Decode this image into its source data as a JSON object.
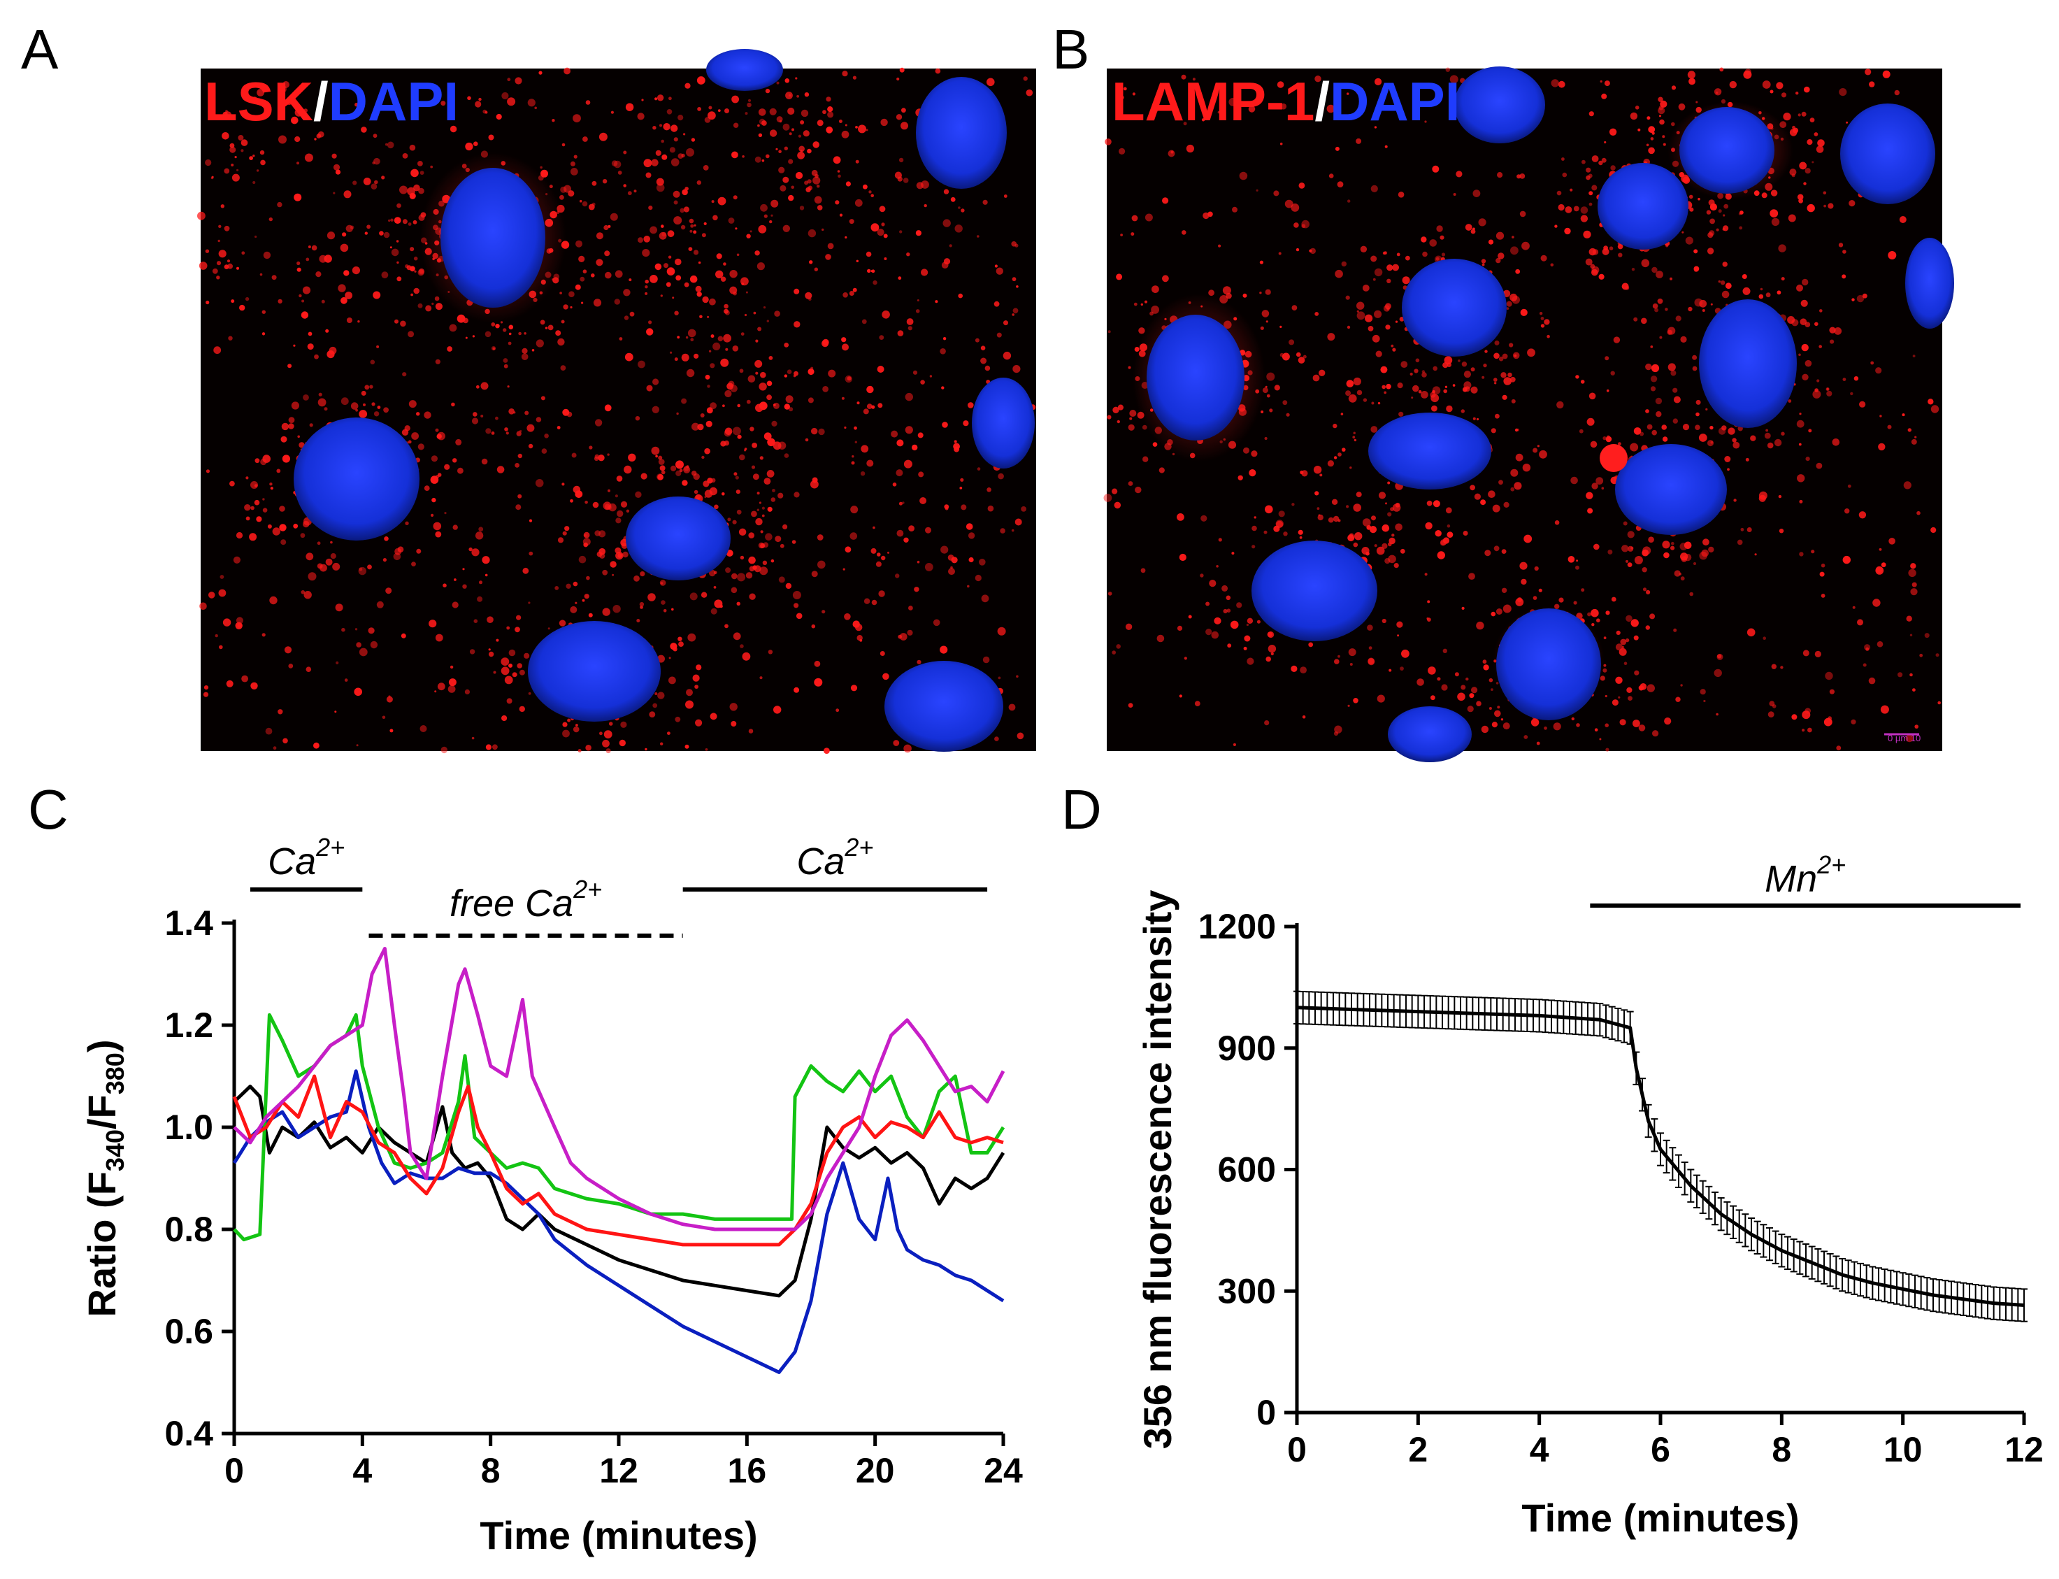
{
  "panels": {
    "A": {
      "label": "A",
      "title_parts": [
        {
          "text": "LSK",
          "color": "#ff1a1a"
        },
        {
          "text": "/",
          "color": "#ffffff"
        },
        {
          "text": "DAPI",
          "color": "#1f3cff"
        }
      ]
    },
    "B": {
      "label": "B",
      "title_parts": [
        {
          "text": "LAMP-1",
          "color": "#ff1a1a"
        },
        {
          "text": "/",
          "color": "#ffffff"
        },
        {
          "text": "DAPI",
          "color": "#1f3cff"
        }
      ],
      "scale_bar": "0   µm  10"
    },
    "C": {
      "label": "C"
    },
    "D": {
      "label": "D"
    }
  },
  "chart_data": [
    {
      "id": "C",
      "type": "line",
      "xlabel": "Time (minutes)",
      "ylabel": "Ratio (F340/F380)",
      "ylabel_parts": {
        "pre": "Ratio (F",
        "sub1": "340",
        "mid": "/F",
        "sub2": "380",
        "post": ")"
      },
      "xlim": [
        0,
        24
      ],
      "ylim": [
        0.4,
        1.4
      ],
      "xticks": [
        0,
        4,
        8,
        12,
        16,
        20,
        24
      ],
      "yticks": [
        "0.4",
        "0.6",
        "0.8",
        "1.0",
        "1.2",
        "1.4"
      ],
      "annotations": [
        {
          "text": "Ca",
          "sup": "2+",
          "x_range": [
            0.5,
            4
          ],
          "style": "solid"
        },
        {
          "text": "free Ca",
          "sup": "2+",
          "x_range": [
            4.2,
            14
          ],
          "style": "dashed"
        },
        {
          "text": "Ca",
          "sup": "2+",
          "x_range": [
            14,
            23.5
          ],
          "style": "solid"
        }
      ],
      "series": [
        {
          "name": "black",
          "color": "#000000",
          "points": [
            [
              0,
              1.05
            ],
            [
              0.5,
              1.08
            ],
            [
              0.8,
              1.06
            ],
            [
              1.1,
              0.95
            ],
            [
              1.5,
              1.0
            ],
            [
              2,
              0.98
            ],
            [
              2.5,
              1.01
            ],
            [
              3,
              0.96
            ],
            [
              3.5,
              0.98
            ],
            [
              4,
              0.95
            ],
            [
              4.5,
              1.0
            ],
            [
              5,
              0.97
            ],
            [
              5.5,
              0.95
            ],
            [
              6,
              0.93
            ],
            [
              6.5,
              1.04
            ],
            [
              6.8,
              0.95
            ],
            [
              7.2,
              0.92
            ],
            [
              7.6,
              0.93
            ],
            [
              8,
              0.9
            ],
            [
              8.5,
              0.82
            ],
            [
              9,
              0.8
            ],
            [
              9.5,
              0.83
            ],
            [
              10,
              0.8
            ],
            [
              11,
              0.77
            ],
            [
              12,
              0.74
            ],
            [
              13,
              0.72
            ],
            [
              14,
              0.7
            ],
            [
              15,
              0.69
            ],
            [
              16,
              0.68
            ],
            [
              17,
              0.67
            ],
            [
              17.5,
              0.7
            ],
            [
              18,
              0.82
            ],
            [
              18.5,
              1.0
            ],
            [
              19,
              0.96
            ],
            [
              19.5,
              0.94
            ],
            [
              20,
              0.96
            ],
            [
              20.5,
              0.93
            ],
            [
              21,
              0.95
            ],
            [
              21.5,
              0.92
            ],
            [
              22,
              0.85
            ],
            [
              22.5,
              0.9
            ],
            [
              23,
              0.88
            ],
            [
              23.5,
              0.9
            ],
            [
              24,
              0.95
            ]
          ]
        },
        {
          "name": "blue",
          "color": "#0a1fbf",
          "points": [
            [
              0,
              0.93
            ],
            [
              0.5,
              0.98
            ],
            [
              1,
              1.01
            ],
            [
              1.5,
              1.03
            ],
            [
              2,
              0.98
            ],
            [
              2.5,
              1.0
            ],
            [
              3,
              1.02
            ],
            [
              3.5,
              1.03
            ],
            [
              3.8,
              1.11
            ],
            [
              4.2,
              1.0
            ],
            [
              4.6,
              0.93
            ],
            [
              5,
              0.89
            ],
            [
              5.5,
              0.91
            ],
            [
              6,
              0.9
            ],
            [
              6.5,
              0.9
            ],
            [
              7,
              0.92
            ],
            [
              7.5,
              0.91
            ],
            [
              8,
              0.91
            ],
            [
              8.5,
              0.89
            ],
            [
              9,
              0.86
            ],
            [
              9.5,
              0.83
            ],
            [
              10,
              0.78
            ],
            [
              11,
              0.73
            ],
            [
              12,
              0.69
            ],
            [
              13,
              0.65
            ],
            [
              14,
              0.61
            ],
            [
              15,
              0.58
            ],
            [
              16,
              0.55
            ],
            [
              17,
              0.52
            ],
            [
              17.5,
              0.56
            ],
            [
              18,
              0.66
            ],
            [
              18.5,
              0.83
            ],
            [
              19,
              0.93
            ],
            [
              19.5,
              0.82
            ],
            [
              20,
              0.78
            ],
            [
              20.4,
              0.9
            ],
            [
              20.7,
              0.8
            ],
            [
              21,
              0.76
            ],
            [
              21.5,
              0.74
            ],
            [
              22,
              0.73
            ],
            [
              22.5,
              0.71
            ],
            [
              23,
              0.7
            ],
            [
              23.5,
              0.68
            ],
            [
              24,
              0.66
            ]
          ]
        },
        {
          "name": "green",
          "color": "#13c413",
          "points": [
            [
              0,
              0.8
            ],
            [
              0.3,
              0.78
            ],
            [
              0.8,
              0.79
            ],
            [
              1.1,
              1.22
            ],
            [
              1.5,
              1.17
            ],
            [
              2,
              1.1
            ],
            [
              2.5,
              1.12
            ],
            [
              3,
              1.16
            ],
            [
              3.5,
              1.18
            ],
            [
              3.8,
              1.22
            ],
            [
              4,
              1.12
            ],
            [
              4.5,
              1.0
            ],
            [
              5,
              0.93
            ],
            [
              5.5,
              0.92
            ],
            [
              6,
              0.93
            ],
            [
              6.5,
              0.95
            ],
            [
              7,
              1.05
            ],
            [
              7.2,
              1.14
            ],
            [
              7.5,
              0.98
            ],
            [
              8,
              0.95
            ],
            [
              8.5,
              0.92
            ],
            [
              9,
              0.93
            ],
            [
              9.5,
              0.92
            ],
            [
              10,
              0.88
            ],
            [
              11,
              0.86
            ],
            [
              12,
              0.85
            ],
            [
              13,
              0.83
            ],
            [
              14,
              0.83
            ],
            [
              15,
              0.82
            ],
            [
              16,
              0.82
            ],
            [
              17,
              0.82
            ],
            [
              17.4,
              0.82
            ],
            [
              17.5,
              1.06
            ],
            [
              18,
              1.12
            ],
            [
              18.5,
              1.09
            ],
            [
              19,
              1.07
            ],
            [
              19.5,
              1.11
            ],
            [
              20,
              1.07
            ],
            [
              20.5,
              1.1
            ],
            [
              21,
              1.02
            ],
            [
              21.5,
              0.98
            ],
            [
              22,
              1.07
            ],
            [
              22.5,
              1.1
            ],
            [
              23,
              0.95
            ],
            [
              23.5,
              0.95
            ],
            [
              24,
              1.0
            ]
          ]
        },
        {
          "name": "red",
          "color": "#ff1414",
          "points": [
            [
              0,
              1.06
            ],
            [
              0.5,
              0.98
            ],
            [
              1,
              1.0
            ],
            [
              1.5,
              1.05
            ],
            [
              2,
              1.02
            ],
            [
              2.5,
              1.1
            ],
            [
              3,
              0.98
            ],
            [
              3.5,
              1.05
            ],
            [
              4,
              1.03
            ],
            [
              4.5,
              0.97
            ],
            [
              5,
              0.95
            ],
            [
              5.5,
              0.9
            ],
            [
              6,
              0.87
            ],
            [
              6.5,
              0.92
            ],
            [
              7,
              1.03
            ],
            [
              7.3,
              1.08
            ],
            [
              7.6,
              1.0
            ],
            [
              8,
              0.95
            ],
            [
              8.5,
              0.88
            ],
            [
              9,
              0.85
            ],
            [
              9.5,
              0.87
            ],
            [
              10,
              0.83
            ],
            [
              11,
              0.8
            ],
            [
              12,
              0.79
            ],
            [
              13,
              0.78
            ],
            [
              14,
              0.77
            ],
            [
              15,
              0.77
            ],
            [
              16,
              0.77
            ],
            [
              17,
              0.77
            ],
            [
              17.5,
              0.8
            ],
            [
              18,
              0.85
            ],
            [
              18.5,
              0.95
            ],
            [
              19,
              1.0
            ],
            [
              19.5,
              1.02
            ],
            [
              20,
              0.98
            ],
            [
              20.5,
              1.01
            ],
            [
              21,
              1.0
            ],
            [
              21.5,
              0.98
            ],
            [
              22,
              1.03
            ],
            [
              22.5,
              0.98
            ],
            [
              23,
              0.97
            ],
            [
              23.5,
              0.98
            ],
            [
              24,
              0.97
            ]
          ]
        },
        {
          "name": "magenta",
          "color": "#c71ec7",
          "points": [
            [
              0,
              1.0
            ],
            [
              0.5,
              0.97
            ],
            [
              1,
              1.02
            ],
            [
              1.5,
              1.05
            ],
            [
              2,
              1.08
            ],
            [
              2.5,
              1.12
            ],
            [
              3,
              1.16
            ],
            [
              3.5,
              1.18
            ],
            [
              4,
              1.2
            ],
            [
              4.3,
              1.3
            ],
            [
              4.7,
              1.35
            ],
            [
              5,
              1.2
            ],
            [
              5.3,
              1.06
            ],
            [
              5.5,
              0.95
            ],
            [
              6,
              0.9
            ],
            [
              6.5,
              1.1
            ],
            [
              7,
              1.28
            ],
            [
              7.2,
              1.31
            ],
            [
              7.6,
              1.22
            ],
            [
              8,
              1.12
            ],
            [
              8.5,
              1.1
            ],
            [
              9,
              1.25
            ],
            [
              9.3,
              1.1
            ],
            [
              10,
              1.0
            ],
            [
              10.5,
              0.93
            ],
            [
              11,
              0.9
            ],
            [
              12,
              0.86
            ],
            [
              13,
              0.83
            ],
            [
              14,
              0.81
            ],
            [
              15,
              0.8
            ],
            [
              16,
              0.8
            ],
            [
              17,
              0.8
            ],
            [
              17.5,
              0.8
            ],
            [
              18,
              0.83
            ],
            [
              18.5,
              0.9
            ],
            [
              19,
              0.95
            ],
            [
              19.5,
              1.0
            ],
            [
              20,
              1.1
            ],
            [
              20.5,
              1.18
            ],
            [
              21,
              1.21
            ],
            [
              21.5,
              1.17
            ],
            [
              22,
              1.12
            ],
            [
              22.5,
              1.07
            ],
            [
              23,
              1.08
            ],
            [
              23.5,
              1.05
            ],
            [
              24,
              1.11
            ]
          ]
        }
      ]
    },
    {
      "id": "D",
      "type": "line",
      "xlabel": "Time (minutes)",
      "ylabel": "356 nm fluorescence intensity",
      "xlim": [
        0,
        12
      ],
      "ylim": [
        0,
        1200
      ],
      "xticks": [
        0,
        2,
        4,
        6,
        8,
        10,
        12
      ],
      "yticks": [
        0,
        300,
        600,
        900,
        1200
      ],
      "annotations": [
        {
          "text": "Mn",
          "sup": "2+",
          "x_range": [
            5.3,
            12
          ],
          "style": "solid"
        }
      ],
      "error_bar": 40,
      "series": [
        {
          "name": "mean",
          "color": "#000000",
          "points": [
            [
              0,
              1000
            ],
            [
              1,
              995
            ],
            [
              2,
              990
            ],
            [
              3,
              985
            ],
            [
              4,
              980
            ],
            [
              5,
              970
            ],
            [
              5.5,
              950
            ],
            [
              5.6,
              850
            ],
            [
              5.8,
              720
            ],
            [
              6,
              650
            ],
            [
              6.5,
              560
            ],
            [
              7,
              490
            ],
            [
              7.5,
              440
            ],
            [
              8,
              400
            ],
            [
              8.5,
              370
            ],
            [
              9,
              340
            ],
            [
              9.5,
              320
            ],
            [
              10,
              305
            ],
            [
              10.5,
              290
            ],
            [
              11,
              280
            ],
            [
              11.5,
              270
            ],
            [
              12,
              265
            ]
          ]
        }
      ]
    }
  ]
}
